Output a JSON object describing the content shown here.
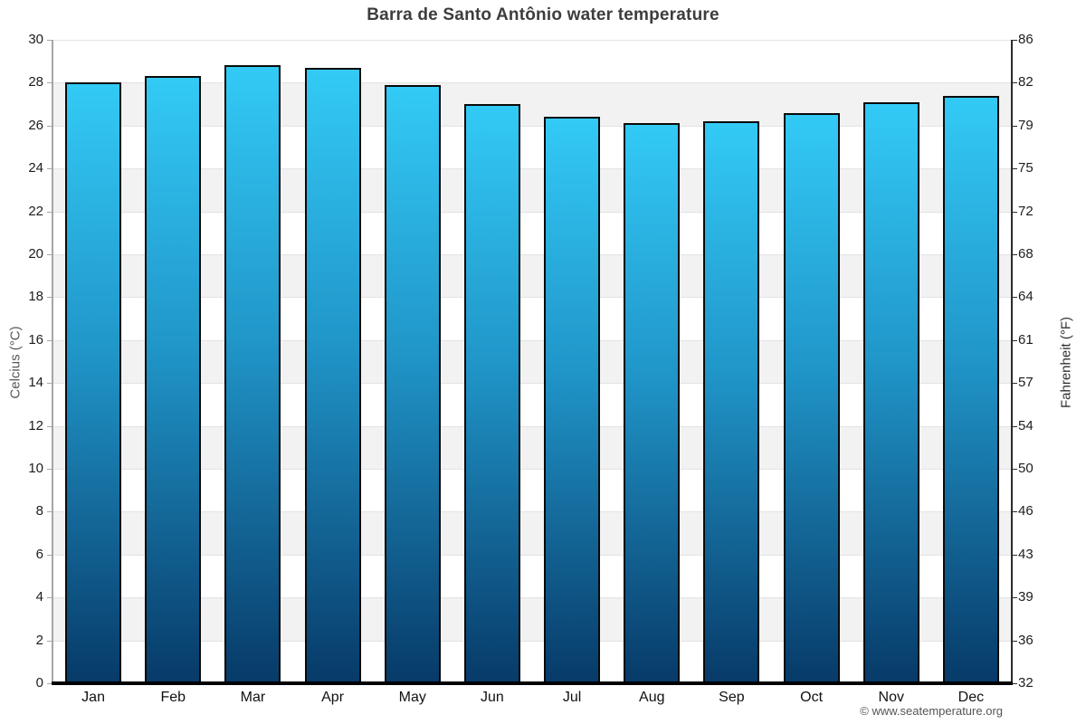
{
  "page": {
    "title": "Barra de Santo Antônio water temperature"
  },
  "footer": {
    "credit": "© www.seatemperature.org"
  },
  "chart_data": {
    "type": "bar",
    "title": "Barra de Santo Antônio water temperature",
    "categories": [
      "Jan",
      "Feb",
      "Mar",
      "Apr",
      "May",
      "Jun",
      "Jul",
      "Aug",
      "Sep",
      "Oct",
      "Nov",
      "Dec"
    ],
    "values": [
      28.0,
      28.3,
      28.8,
      28.7,
      27.9,
      27.0,
      26.4,
      26.1,
      26.2,
      26.6,
      27.1,
      27.4
    ],
    "value_unit": "°C",
    "ylabel_left": "Celcius (°C)",
    "ylabel_right": "Fahrenheit (°F)",
    "ylim": [
      0,
      30
    ],
    "yticks_celsius": [
      0,
      2,
      4,
      6,
      8,
      10,
      12,
      14,
      16,
      18,
      20,
      22,
      24,
      26,
      28,
      30
    ],
    "yticks_fahrenheit": [
      32,
      36,
      39,
      43,
      46,
      50,
      54,
      57,
      61,
      64,
      68,
      72,
      75,
      79,
      82,
      86
    ],
    "grid": "alternating-horizontal-bands-every-2C",
    "legend_position": "none",
    "colors": {
      "bar_gradient_top": "#33CAF6",
      "bar_gradient_mid": "#2095C8",
      "bar_gradient_bottom": "#073A68",
      "bar_border": "#0a0a0a",
      "band_gray": "#f2f2f2",
      "gridline": "#e3e3e3",
      "axis_left": "#a6a6a6",
      "axis_right": "#2b2b2b",
      "axis_bottom": "#000000",
      "title_text": "#3d3d3d",
      "tick_text": "#1d1d1d",
      "month_text": "#111111",
      "footer_text": "#555555"
    }
  }
}
